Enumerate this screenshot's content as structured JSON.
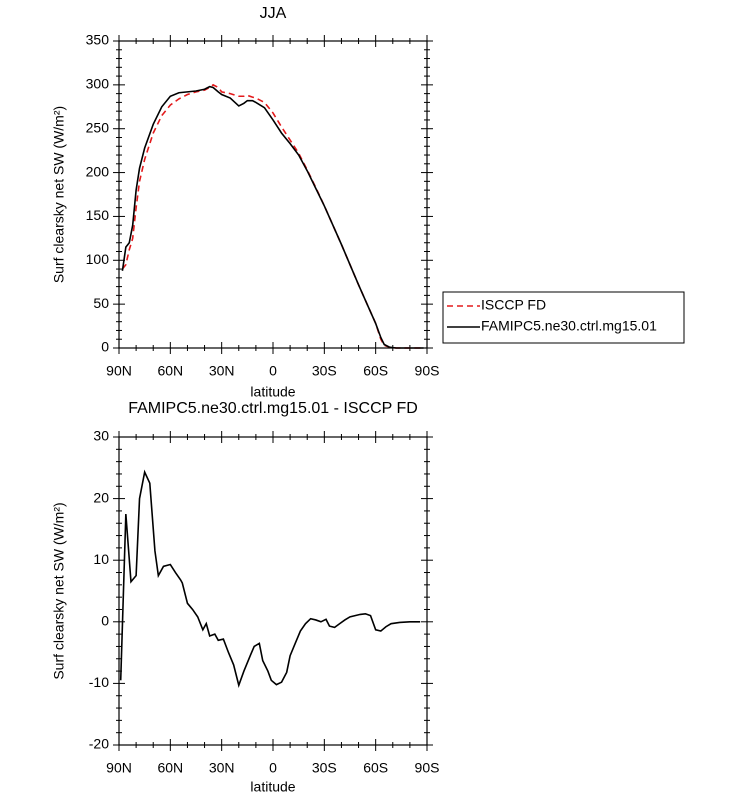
{
  "chart_data": [
    {
      "type": "line",
      "title": "JJA",
      "xlabel": "latitude",
      "ylabel": "Surf clearsky net SW (W/m²)",
      "x": [
        88,
        86,
        84,
        82,
        80,
        78,
        75,
        70,
        65,
        60,
        55,
        50,
        45,
        40,
        37,
        35,
        32,
        30,
        25,
        20,
        17,
        15,
        12,
        10,
        5,
        0,
        -5,
        -10,
        -15,
        -20,
        -25,
        -30,
        -35,
        -40,
        -45,
        -50,
        -55,
        -60,
        -63,
        -65,
        -68,
        -72,
        -80,
        -88
      ],
      "series": [
        {
          "name": "ISCCP FD",
          "color": "#e31a1c",
          "dashed": true,
          "values": [
            90,
            95,
            112,
            125,
            160,
            190,
            215,
            245,
            265,
            277,
            284,
            289,
            292,
            294,
            297,
            300,
            297,
            292,
            290,
            287,
            287,
            288,
            286,
            285,
            280,
            268,
            252,
            237,
            222,
            203,
            183,
            162,
            140,
            118,
            95,
            72,
            50,
            28,
            10,
            3,
            1,
            0,
            0,
            0
          ]
        },
        {
          "name": "FAMIPC5.ne30.ctrl.mg15.01",
          "color": "#000000",
          "dashed": false,
          "values": [
            88,
            115,
            120,
            140,
            180,
            205,
            228,
            255,
            275,
            287,
            291,
            292,
            293,
            295,
            298,
            297,
            292,
            289,
            285,
            276,
            279,
            282,
            282,
            280,
            274,
            260,
            245,
            233,
            220,
            202,
            182,
            162,
            140,
            118,
            95,
            72,
            50,
            28,
            12,
            4,
            1,
            0,
            0,
            0
          ]
        }
      ],
      "xlim": [
        90,
        -90
      ],
      "xticks": [
        {
          "value": 90,
          "label": "90N"
        },
        {
          "value": 60,
          "label": "60N"
        },
        {
          "value": 30,
          "label": "30N"
        },
        0,
        {
          "value": -30,
          "label": "30S"
        },
        {
          "value": -60,
          "label": "60S"
        },
        {
          "value": -90,
          "label": "90S"
        }
      ],
      "ylim": [
        0,
        350
      ],
      "yticks": [
        0,
        50,
        100,
        150,
        200,
        250,
        300,
        350
      ],
      "legend": "right"
    },
    {
      "type": "line",
      "title": "FAMIPC5.ne30.ctrl.mg15.01 - ISCCP FD",
      "xlabel": "latitude",
      "ylabel": "Surf clearsky net SW (W/m²)",
      "x": [
        89,
        86,
        83,
        80,
        78,
        75,
        72,
        69,
        67,
        64,
        60,
        57,
        54,
        53,
        50,
        47,
        44,
        41,
        39,
        37,
        34,
        32,
        29,
        26,
        23,
        20,
        17,
        13,
        11,
        8,
        6,
        3,
        1,
        -2,
        -5,
        -8,
        -10,
        -13,
        -16,
        -19,
        -22,
        -25,
        -28,
        -31,
        -33,
        -36,
        -39,
        -42,
        -45,
        -48,
        -51,
        -54,
        -57,
        -60,
        -63,
        -66,
        -69,
        -74,
        -80,
        -86
      ],
      "values": [
        -9.5,
        17.5,
        6.5,
        7.5,
        20,
        24.3,
        22.5,
        11.5,
        7.5,
        9,
        9.3,
        8,
        6.8,
        6.3,
        3,
        2,
        0.8,
        -1.3,
        -0.3,
        -2.3,
        -2,
        -3,
        -2.8,
        -5,
        -7,
        -10.3,
        -8,
        -5.3,
        -4,
        -3.5,
        -6.3,
        -8,
        -9.5,
        -10.2,
        -9.8,
        -8.2,
        -5.5,
        -3.5,
        -1.5,
        -0.3,
        0.5,
        0.3,
        0,
        0.4,
        -0.7,
        -0.9,
        -0.3,
        0.3,
        0.8,
        1,
        1.2,
        1.3,
        1,
        -1.3,
        -1.5,
        -0.8,
        -0.3,
        -0.1,
        0,
        0
      ],
      "color": "#000000",
      "xlim": [
        90,
        -90
      ],
      "xticks": [
        {
          "value": 90,
          "label": "90N"
        },
        {
          "value": 60,
          "label": "60N"
        },
        {
          "value": 30,
          "label": "30N"
        },
        0,
        {
          "value": -30,
          "label": "30S"
        },
        {
          "value": -60,
          "label": "60S"
        },
        {
          "value": -90,
          "label": "90S"
        }
      ],
      "ylim": [
        -20,
        30
      ],
      "yticks": [
        -20,
        -10,
        0,
        10,
        20,
        30
      ]
    }
  ]
}
